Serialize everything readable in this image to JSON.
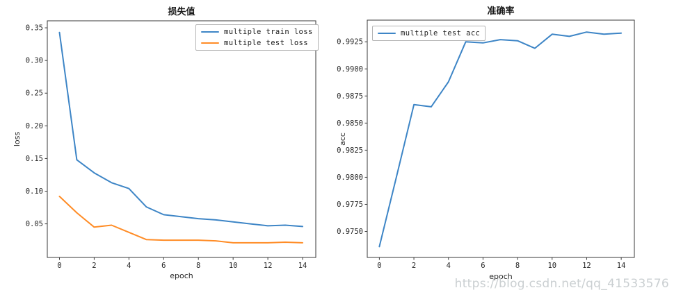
{
  "watermark": "https://blog.csdn.net/qq_41533576",
  "accent_colors": {
    "train_loss_line": "#3d85c6",
    "test_loss_line": "#ff8c26",
    "test_acc_line": "#3d85c6"
  },
  "chart_data": [
    {
      "type": "line",
      "title": "损失值",
      "xlabel": "epoch",
      "ylabel": "loss",
      "legend_position": "top-right",
      "grid": false,
      "x": [
        0,
        1,
        2,
        3,
        4,
        5,
        6,
        7,
        8,
        9,
        10,
        11,
        12,
        13,
        14
      ],
      "x_ticks": [
        0,
        2,
        4,
        6,
        8,
        10,
        12,
        14
      ],
      "x_tick_labels": [
        "0",
        "2",
        "4",
        "6",
        "8",
        "10",
        "12",
        "14"
      ],
      "y_tick_values": [
        0.05,
        0.1,
        0.15,
        0.2,
        0.25,
        0.3,
        0.35
      ],
      "y_tick_labels": [
        "0.05",
        "0.10",
        "0.15",
        "0.20",
        "0.25",
        "0.30",
        "0.35"
      ],
      "xlim": [
        -0.7,
        14.76
      ],
      "ylim": [
        -0.0014,
        0.3607
      ],
      "series": [
        {
          "name": "multiple train loss",
          "color": "#3d85c6",
          "values": [
            0.343,
            0.148,
            0.128,
            0.113,
            0.104,
            0.076,
            0.064,
            0.061,
            0.058,
            0.056,
            0.053,
            0.05,
            0.047,
            0.048,
            0.046
          ]
        },
        {
          "name": "multiple test loss",
          "color": "#ff8c26",
          "values": [
            0.092,
            0.067,
            0.045,
            0.048,
            0.037,
            0.026,
            0.025,
            0.025,
            0.025,
            0.024,
            0.021,
            0.021,
            0.021,
            0.022,
            0.021
          ]
        }
      ]
    },
    {
      "type": "line",
      "title": "准确率",
      "xlabel": "epoch",
      "ylabel": "acc",
      "legend_position": "top-left",
      "grid": false,
      "x": [
        0,
        1,
        2,
        3,
        4,
        5,
        6,
        7,
        8,
        9,
        10,
        11,
        12,
        13,
        14
      ],
      "x_ticks": [
        0,
        2,
        4,
        6,
        8,
        10,
        12,
        14
      ],
      "x_tick_labels": [
        "0",
        "2",
        "4",
        "6",
        "8",
        "10",
        "12",
        "14"
      ],
      "y_tick_values": [
        0.975,
        0.9775,
        0.98,
        0.9825,
        0.985,
        0.9875,
        0.99,
        0.9925
      ],
      "y_tick_labels": [
        "0.9750",
        "0.9775",
        "0.9800",
        "0.9825",
        "0.9850",
        "0.9875",
        "0.9900",
        "0.9925"
      ],
      "xlim": [
        -0.7,
        14.76
      ],
      "ylim": [
        0.9726,
        0.9945
      ],
      "series": [
        {
          "name": "multiple test acc",
          "color": "#3d85c6",
          "values": [
            0.9736,
            0.9801,
            0.9867,
            0.9865,
            0.9888,
            0.9925,
            0.9924,
            0.9927,
            0.9926,
            0.9919,
            0.9932,
            0.993,
            0.9934,
            0.9932,
            0.9933
          ]
        }
      ]
    }
  ]
}
